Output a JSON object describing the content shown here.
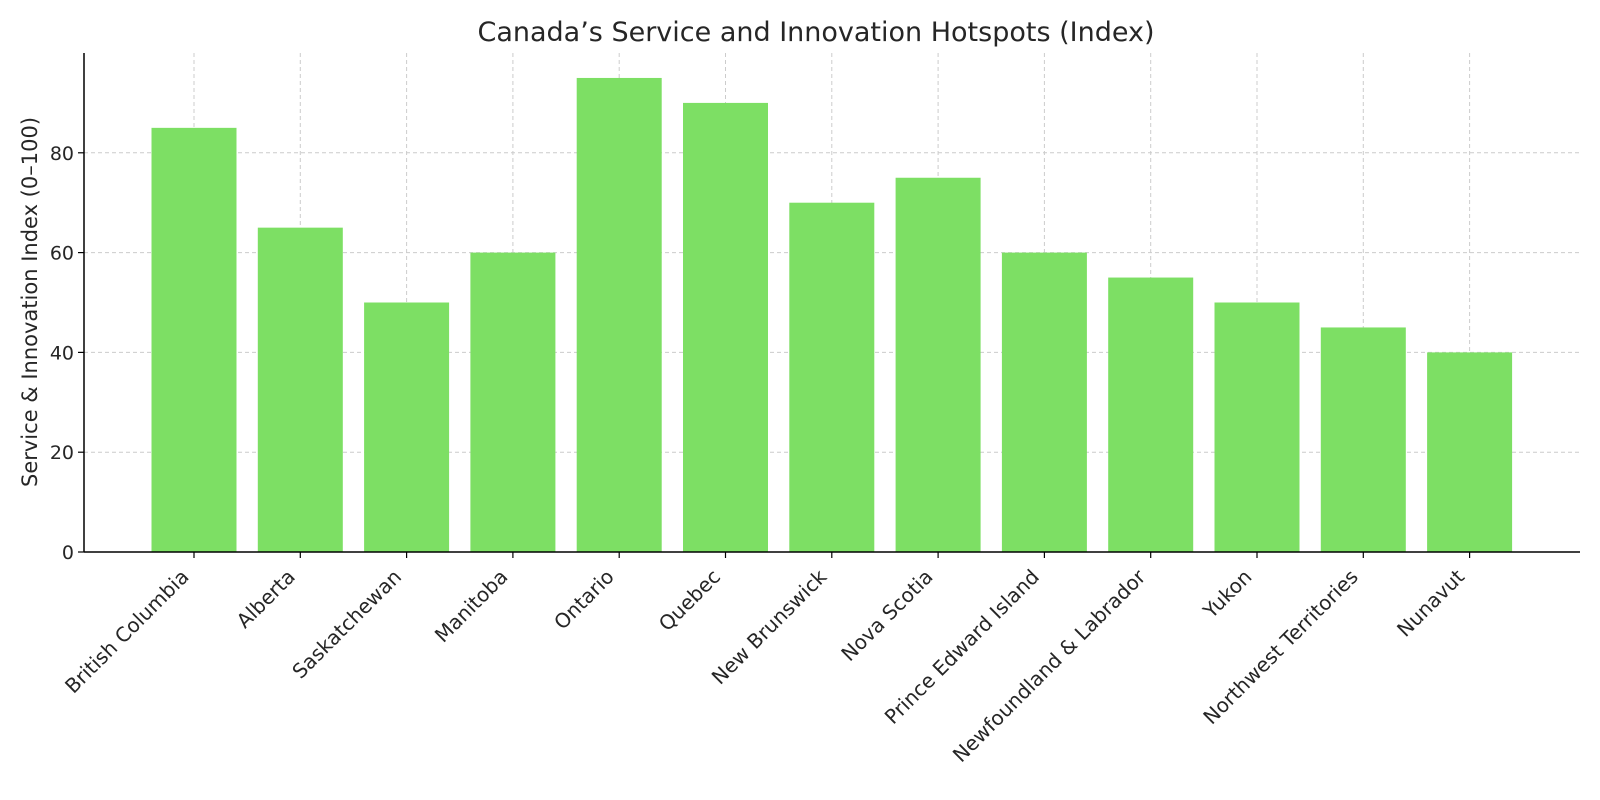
{
  "chart_data": {
    "type": "bar",
    "title": "Canada’s Service and Innovation Hotspots (Index)",
    "xlabel": "",
    "ylabel": "Service & Innovation Index (0–100)",
    "categories": [
      "British Columbia",
      "Alberta",
      "Saskatchewan",
      "Manitoba",
      "Ontario",
      "Quebec",
      "New Brunswick",
      "Nova Scotia",
      "Prince Edward Island",
      "Newfoundland & Labrador",
      "Yukon",
      "Northwest Territories",
      "Nunavut"
    ],
    "values": [
      85,
      65,
      50,
      60,
      95,
      90,
      70,
      75,
      60,
      55,
      50,
      45,
      40
    ],
    "ylim": [
      0,
      100
    ],
    "yticks": [
      0,
      20,
      40,
      60,
      80
    ],
    "grid": true,
    "bar_color": "#7ddf64"
  }
}
